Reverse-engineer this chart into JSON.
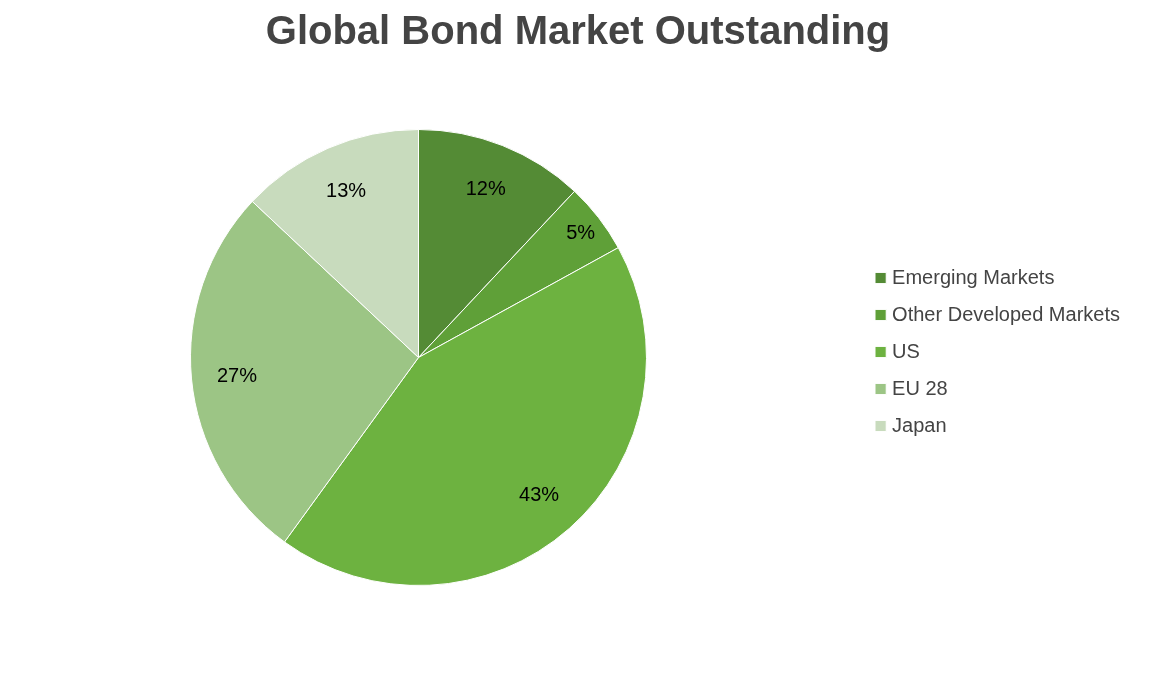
{
  "chart_data": {
    "type": "pie",
    "title": "Global Bond Market Outstanding",
    "categories": [
      "Emerging Markets",
      "Other Developed Markets",
      "US",
      "EU 28",
      "Japan"
    ],
    "values": [
      12,
      5,
      43,
      27,
      13
    ],
    "value_labels": [
      "12%",
      "5%",
      "43%",
      "27%",
      "13%"
    ],
    "colors": [
      "#548b35",
      "#5fa038",
      "#6db240",
      "#9cc585",
      "#c8dbbd"
    ],
    "legend": "right"
  }
}
